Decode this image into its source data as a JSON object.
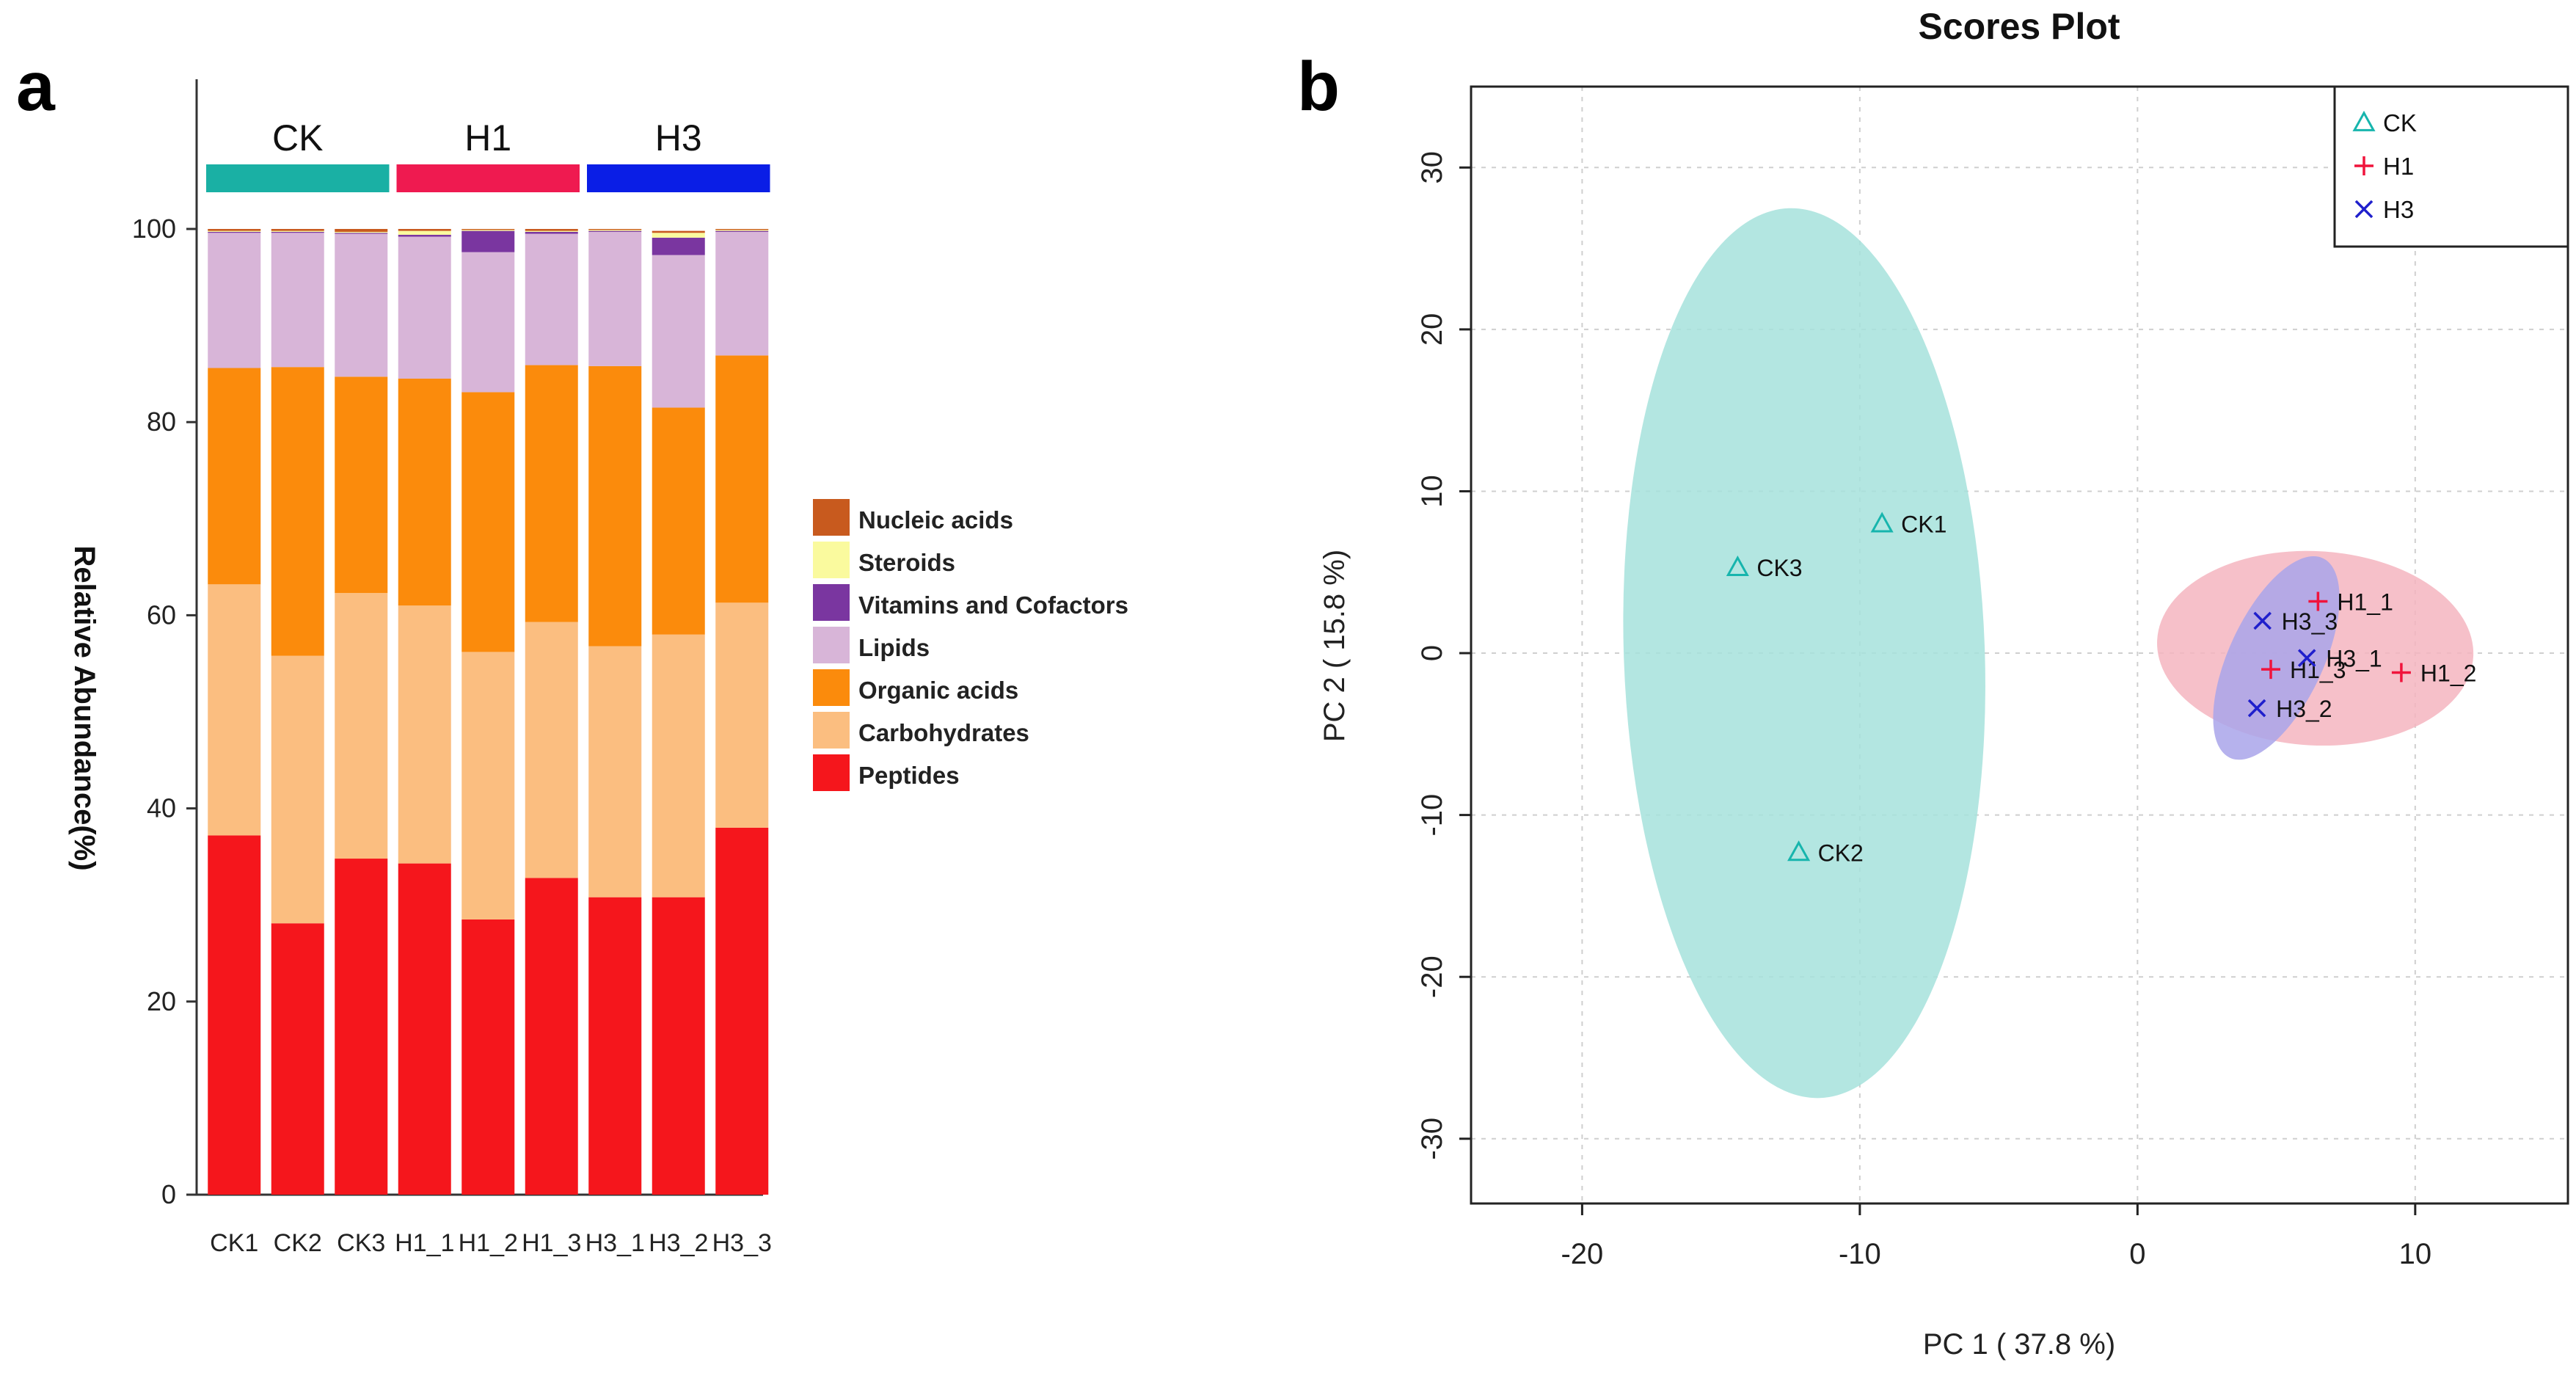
{
  "colors": {
    "peptides": "#f5161c",
    "carbohydrates": "#fbbe80",
    "organic_acids": "#fb8b0c",
    "lipids": "#d8b5d8",
    "vitamins": "#7a36a0",
    "steroids": "#fafa9e",
    "nucleic_acids": "#c85a1e",
    "ck_group": "#1ab0a4",
    "h1_group": "#ef1a50",
    "h3_group": "#0a1ee6",
    "ck_ellipse": "#a6e2dc",
    "h1_ellipse": "#f5b5bf",
    "h3_ellipse": "#a9a5ea",
    "ck_marker": "#17b5ad",
    "h1_marker": "#f0143c",
    "h3_marker": "#1f1fcc"
  },
  "chart_data": [
    {
      "panel": "a",
      "type": "bar",
      "stacked": true,
      "title": "",
      "xlabel": "",
      "ylabel": "Relative Abundance(%)",
      "ylim": [
        0,
        100
      ],
      "yticks": [
        "0",
        "20",
        "40",
        "60",
        "80",
        "100"
      ],
      "grid": false,
      "legend_position": "right",
      "categories": [
        "CK1",
        "CK2",
        "CK3",
        "H1_1",
        "H1_2",
        "H1_3",
        "H3_1",
        "H3_2",
        "H3_3"
      ],
      "groups": [
        {
          "name": "CK",
          "members": [
            "CK1",
            "CK2",
            "CK3"
          ],
          "color_key": "ck_group"
        },
        {
          "name": "H1",
          "members": [
            "H1_1",
            "H1_2",
            "H1_3"
          ],
          "color_key": "h1_group"
        },
        {
          "name": "H3",
          "members": [
            "H3_1",
            "H3_2",
            "H3_3"
          ],
          "color_key": "h3_group"
        }
      ],
      "series": [
        {
          "name": "Peptides",
          "color_key": "peptides",
          "values": [
            37.2,
            28.1,
            34.8,
            34.3,
            28.5,
            32.8,
            30.8,
            30.8,
            38.0
          ]
        },
        {
          "name": "Carbohydrates",
          "color_key": "carbohydrates",
          "values": [
            26.0,
            27.7,
            27.5,
            26.7,
            27.7,
            26.5,
            26.0,
            27.2,
            23.3
          ]
        },
        {
          "name": "Organic acids",
          "color_key": "organic_acids",
          "values": [
            22.4,
            29.9,
            22.4,
            23.5,
            26.9,
            26.6,
            29.0,
            23.5,
            25.6
          ]
        },
        {
          "name": "Lipids",
          "color_key": "lipids",
          "values": [
            14.0,
            13.9,
            14.8,
            14.7,
            14.5,
            13.6,
            13.9,
            15.8,
            12.8
          ]
        },
        {
          "name": "Vitamins and Cofactors",
          "color_key": "vitamins",
          "values": [
            0.1,
            0.1,
            0.1,
            0.2,
            2.2,
            0.2,
            0.1,
            1.8,
            0.1
          ]
        },
        {
          "name": "Steroids",
          "color_key": "steroids",
          "values": [
            0.1,
            0.1,
            0.1,
            0.4,
            0.1,
            0.1,
            0.1,
            0.5,
            0.1
          ]
        },
        {
          "name": "Nucleic acids",
          "color_key": "nucleic_acids",
          "values": [
            0.2,
            0.2,
            0.3,
            0.2,
            0.1,
            0.2,
            0.1,
            0.2,
            0.1
          ]
        }
      ],
      "legend_order": [
        "Nucleic acids",
        "Steroids",
        "Vitamins and Cofactors",
        "Lipids",
        "Organic acids",
        "Carbohydrates",
        "Peptides"
      ]
    },
    {
      "panel": "b",
      "type": "scatter",
      "title": "Scores Plot",
      "xlabel": "PC 1 ( 37.8 %)",
      "ylabel": "PC 2 ( 15.8 %)",
      "xlim": [
        -24,
        15.5
      ],
      "ylim": [
        -34,
        35
      ],
      "xticks": [
        -20,
        -10,
        0,
        10
      ],
      "yticks": [
        -30,
        -20,
        -10,
        0,
        10,
        20,
        30
      ],
      "grid": true,
      "legend_position": "top-right",
      "series": [
        {
          "name": "CK",
          "marker": "triangle",
          "color_key": "ck_marker",
          "points": [
            {
              "label": "CK1",
              "x": -9.2,
              "y": 8.0
            },
            {
              "label": "CK2",
              "x": -12.2,
              "y": -12.3
            },
            {
              "label": "CK3",
              "x": -14.4,
              "y": 5.3
            }
          ]
        },
        {
          "name": "H1",
          "marker": "plus",
          "color_key": "h1_marker",
          "points": [
            {
              "label": "H1_1",
              "x": 6.5,
              "y": 3.2
            },
            {
              "label": "H1_2",
              "x": 9.5,
              "y": -1.2
            },
            {
              "label": "H1_3",
              "x": 4.8,
              "y": -1.0
            }
          ]
        },
        {
          "name": "H3",
          "marker": "x",
          "color_key": "h3_marker",
          "points": [
            {
              "label": "H3_1",
              "x": 6.1,
              "y": -0.3
            },
            {
              "label": "H3_2",
              "x": 4.3,
              "y": -3.4
            },
            {
              "label": "H3_3",
              "x": 4.5,
              "y": 2.0
            }
          ]
        }
      ],
      "ellipses": [
        {
          "group": "CK",
          "color_key": "ck_ellipse",
          "cx": -12.0,
          "cy": 0.0,
          "rx": 6.5,
          "ry": 27.5,
          "angle": -2
        },
        {
          "group": "H1",
          "color_key": "h1_ellipse",
          "cx": 6.4,
          "cy": 0.3,
          "rx": 5.7,
          "ry": 6.0,
          "angle": 3
        },
        {
          "group": "H3",
          "color_key": "h3_ellipse",
          "cx": 5.0,
          "cy": -0.3,
          "rx": 1.7,
          "ry": 6.8,
          "angle": 25
        }
      ]
    }
  ],
  "panel_labels": {
    "a": "a",
    "b": "b"
  }
}
